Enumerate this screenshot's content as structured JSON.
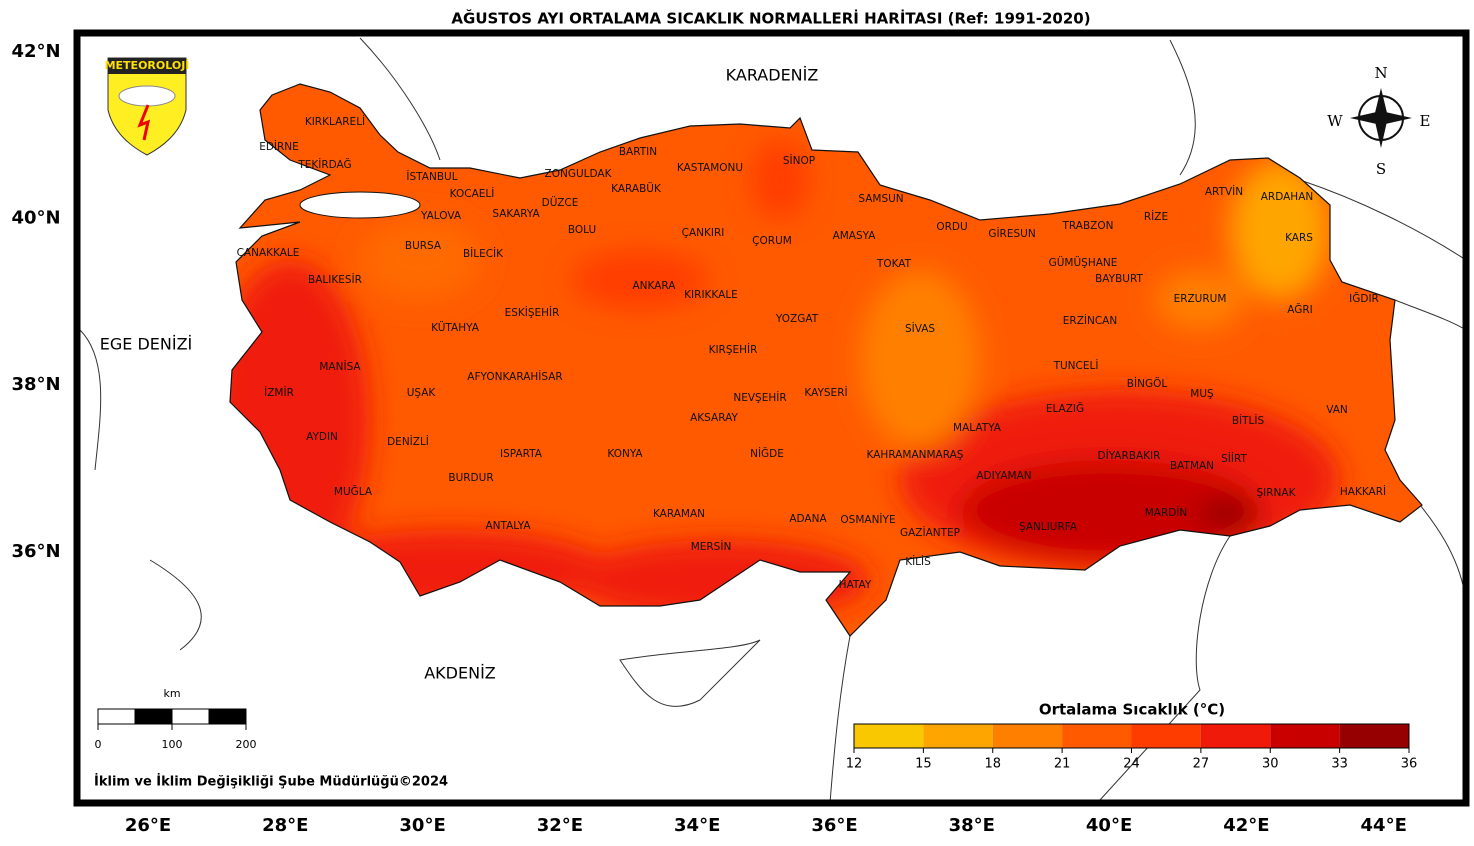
{
  "title": "AĞUSTOS AYI ORTALAMA SICAKLIK NORMALLERİ HARİTASI (Ref: 1991-2020)",
  "lat_ticks": [
    {
      "value": 42,
      "label": "42°N"
    },
    {
      "value": 40,
      "label": "40°N"
    },
    {
      "value": 38,
      "label": "38°N"
    },
    {
      "value": 36,
      "label": "36°N"
    }
  ],
  "lon_ticks": [
    {
      "value": 26,
      "label": "26°E"
    },
    {
      "value": 28,
      "label": "28°E"
    },
    {
      "value": 30,
      "label": "30°E"
    },
    {
      "value": 32,
      "label": "32°E"
    },
    {
      "value": 34,
      "label": "34°E"
    },
    {
      "value": 36,
      "label": "36°E"
    },
    {
      "value": 38,
      "label": "38°E"
    },
    {
      "value": 40,
      "label": "40°E"
    },
    {
      "value": 42,
      "label": "42°E"
    },
    {
      "value": 44,
      "label": "44°E"
    }
  ],
  "seas": [
    "KARADENİZ",
    "EGE DENİZİ",
    "AKDENİZ"
  ],
  "provinces": [
    "KIRKLARELİ",
    "EDİRNE",
    "TEKİRDAĞ",
    "İSTANBUL",
    "KOCAELİ",
    "YALOVA",
    "SAKARYA",
    "DÜZCE",
    "ZONGULDAK",
    "BARTIN",
    "KARABÜK",
    "KASTAMONU",
    "SİNOP",
    "SAMSUN",
    "BOLU",
    "ÇANAKKALE",
    "BURSA",
    "BİLECİK",
    "ÇANKIRI",
    "ÇORUM",
    "AMASYA",
    "ORDU",
    "GİRESUN",
    "TRABZON",
    "RİZE",
    "ARTVİN",
    "ARDAHAN",
    "KARS",
    "BALIKESİR",
    "TOKAT",
    "GÜMÜŞHANE",
    "BAYBURT",
    "ERZURUM",
    "IĞDIR",
    "AĞRI",
    "ANKARA",
    "KIRIKKALE",
    "ESKİŞEHİR",
    "KÜTAHYA",
    "YOZGAT",
    "SİVAS",
    "ERZİNCAN",
    "KIRŞEHİR",
    "MANİSA",
    "TUNCELİ",
    "AFYONKARAHİSAR",
    "BİNGÖL",
    "UŞAK",
    "İZMİR",
    "MUŞ",
    "KAYSERİ",
    "NEVŞEHİR",
    "ELAZIĞ",
    "VAN",
    "AKSARAY",
    "BİTLİS",
    "MALATYA",
    "AYDIN",
    "DENİZLİ",
    "ISPARTA",
    "KONYA",
    "NİĞDE",
    "KAHRAMANMARAŞ",
    "DİYARBAKIR",
    "SİİRT",
    "BATMAN",
    "ADIYAMAN",
    "BURDUR",
    "MUĞLA",
    "ŞIRNAK",
    "HAKKARİ",
    "KARAMAN",
    "MARDİN",
    "ADANA",
    "OSMANİYE",
    "ANTALYA",
    "ŞANLIURFA",
    "GAZİANTEP",
    "MERSİN",
    "KİLİS",
    "HATAY"
  ],
  "logo_text": "METEOROLOJİ",
  "compass": [
    "N",
    "S",
    "E",
    "W"
  ],
  "scale": {
    "unit": "km",
    "ticks": [
      0,
      100,
      200
    ]
  },
  "colorbar": {
    "title": "Ortalama Sıcaklık (°C)",
    "ticks": [
      12,
      15,
      18,
      21,
      24,
      27,
      30,
      33,
      36
    ],
    "colors": [
      "#f9c800",
      "#ffa500",
      "#ff8000",
      "#ff5a00",
      "#ff3c00",
      "#f01a0a",
      "#c80000",
      "#960000"
    ]
  },
  "footer": "İklim ve İklim Değişikliği Şube Müdürlüğü©2024"
}
